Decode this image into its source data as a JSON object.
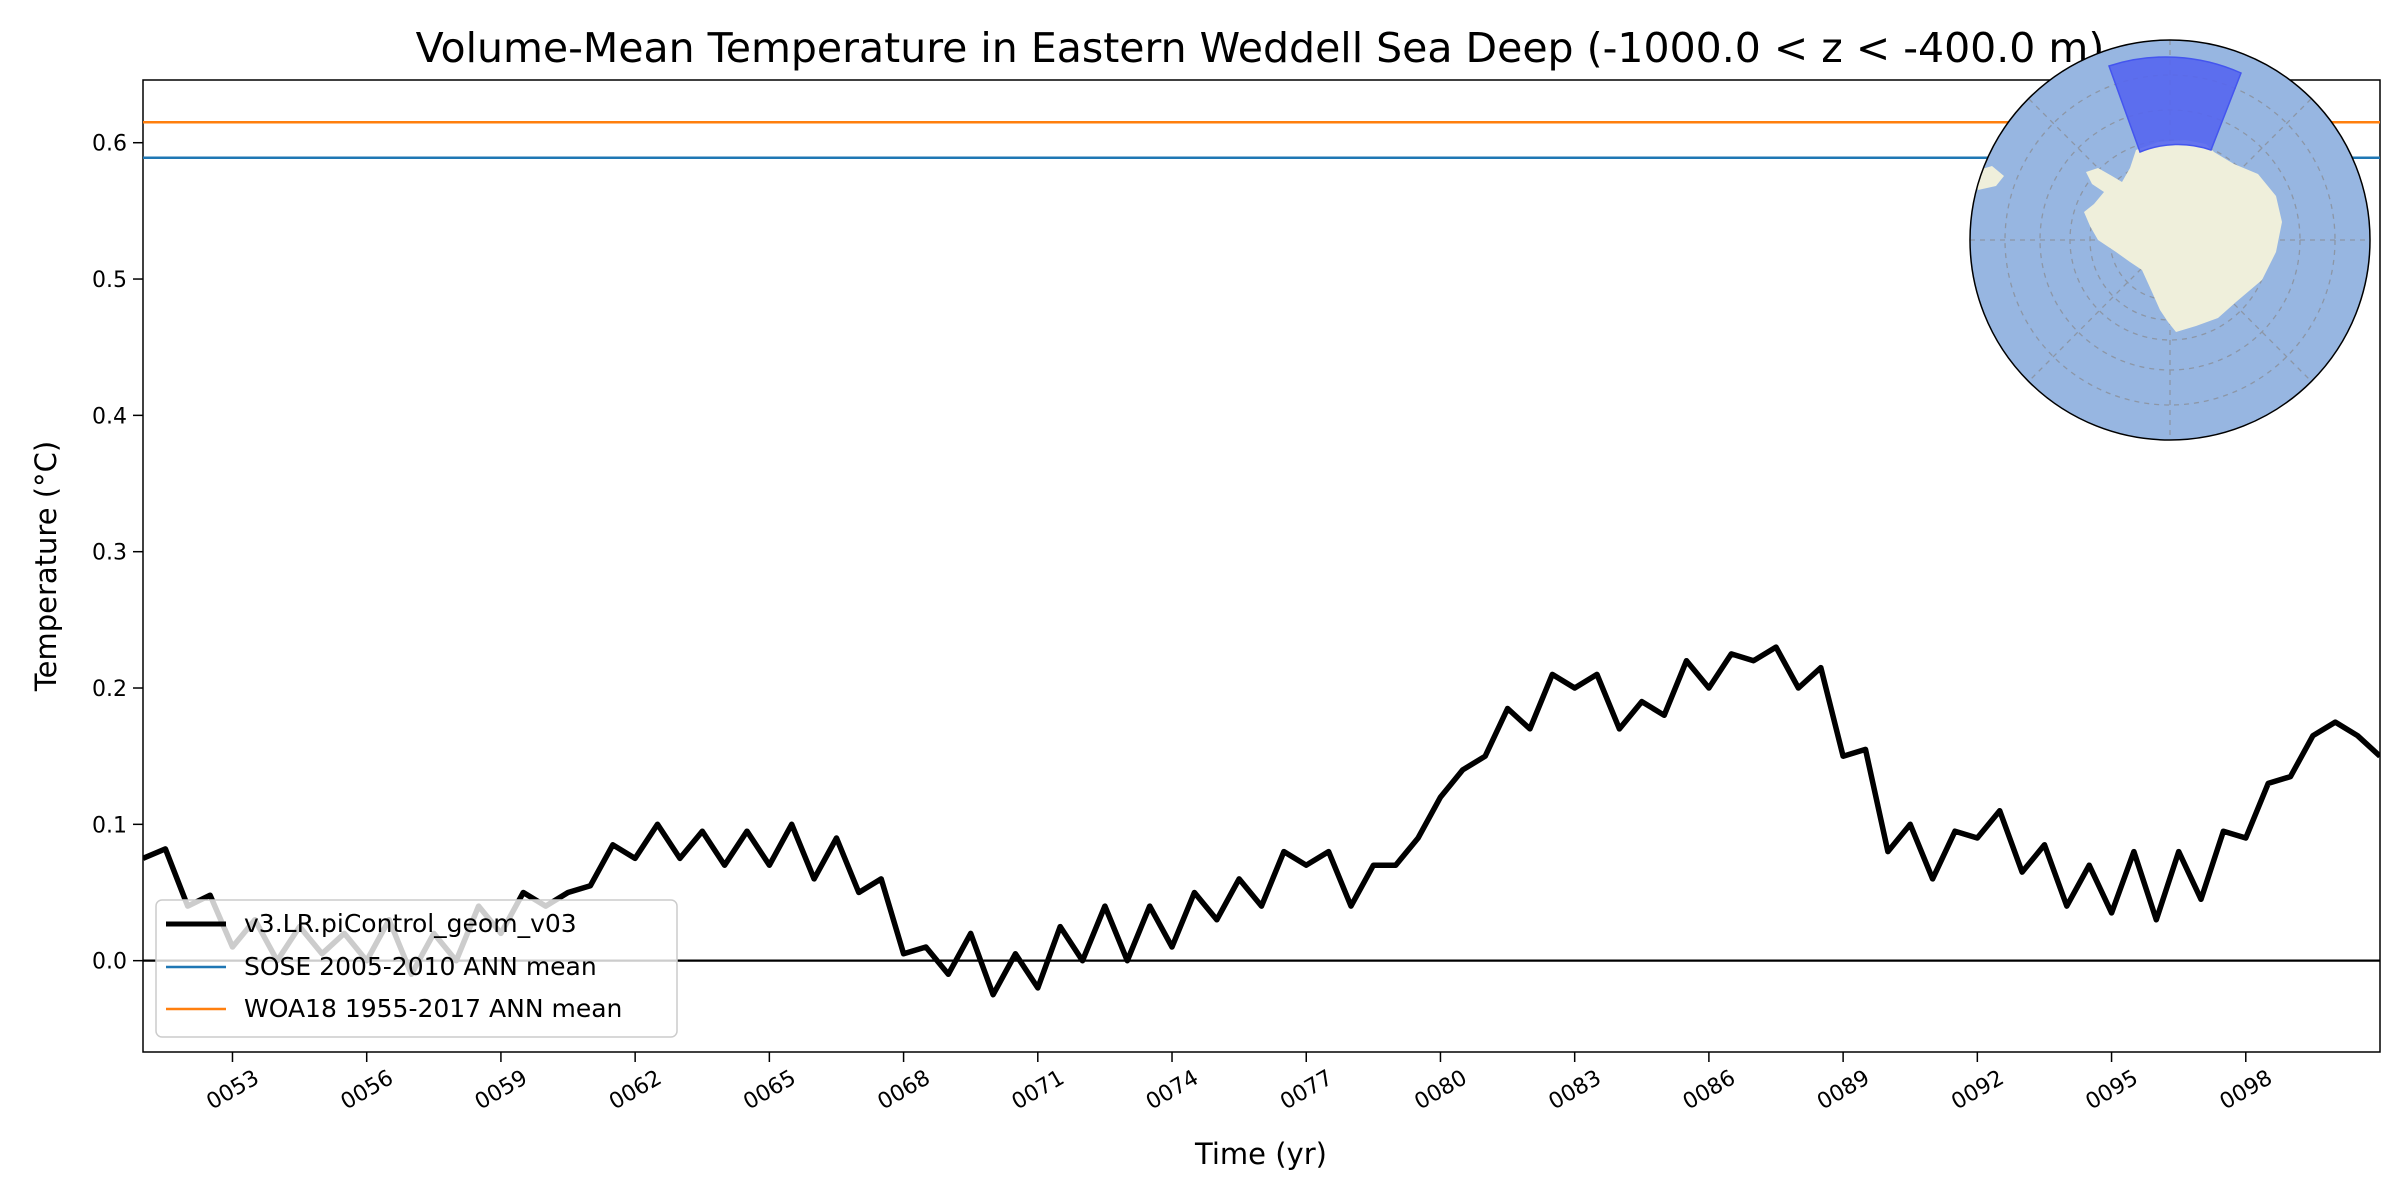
{
  "chart_data": {
    "type": "line",
    "title": "Volume-Mean Temperature in Eastern Weddell Sea Deep (-1000.0 < z < -400.0 m)",
    "xlabel": "Time (yr)",
    "ylabel": "Temperature (°C)",
    "xlim": [
      51,
      101
    ],
    "ylim": [
      -0.067,
      0.646
    ],
    "x_ticks": [
      {
        "value": 53,
        "label": "0053"
      },
      {
        "value": 56,
        "label": "0056"
      },
      {
        "value": 59,
        "label": "0059"
      },
      {
        "value": 62,
        "label": "0062"
      },
      {
        "value": 65,
        "label": "0065"
      },
      {
        "value": 68,
        "label": "0068"
      },
      {
        "value": 71,
        "label": "0071"
      },
      {
        "value": 74,
        "label": "0074"
      },
      {
        "value": 77,
        "label": "0077"
      },
      {
        "value": 80,
        "label": "0080"
      },
      {
        "value": 83,
        "label": "0083"
      },
      {
        "value": 86,
        "label": "0086"
      },
      {
        "value": 89,
        "label": "0089"
      },
      {
        "value": 92,
        "label": "0092"
      },
      {
        "value": 95,
        "label": "0095"
      },
      {
        "value": 98,
        "label": "0098"
      }
    ],
    "y_ticks": [
      {
        "value": 0.0,
        "label": "0.0"
      },
      {
        "value": 0.1,
        "label": "0.1"
      },
      {
        "value": 0.2,
        "label": "0.2"
      },
      {
        "value": 0.3,
        "label": "0.3"
      },
      {
        "value": 0.4,
        "label": "0.4"
      },
      {
        "value": 0.5,
        "label": "0.5"
      },
      {
        "value": 0.6,
        "label": "0.6"
      }
    ],
    "series": [
      {
        "name": "v3.LR.piControl_geom_v03",
        "color": "#000000",
        "x": [
          51.0,
          51.5,
          52.0,
          52.5,
          53.0,
          53.5,
          54.0,
          54.5,
          55.0,
          55.5,
          56.0,
          56.5,
          57.0,
          57.5,
          58.0,
          58.5,
          59.0,
          59.5,
          60.0,
          60.5,
          61.0,
          61.5,
          62.0,
          62.5,
          63.0,
          63.5,
          64.0,
          64.5,
          65.0,
          65.5,
          66.0,
          66.5,
          67.0,
          67.5,
          68.0,
          68.5,
          69.0,
          69.5,
          70.0,
          70.5,
          71.0,
          71.5,
          72.0,
          72.5,
          73.0,
          73.5,
          74.0,
          74.5,
          75.0,
          75.5,
          76.0,
          76.5,
          77.0,
          77.5,
          78.0,
          78.5,
          79.0,
          79.5,
          80.0,
          80.5,
          81.0,
          81.5,
          82.0,
          82.5,
          83.0,
          83.5,
          84.0,
          84.5,
          85.0,
          85.5,
          86.0,
          86.5,
          87.0,
          87.5,
          88.0,
          88.5,
          89.0,
          89.5,
          90.0,
          90.5,
          91.0,
          91.5,
          92.0,
          92.5,
          93.0,
          93.5,
          94.0,
          94.5,
          95.0,
          95.5,
          96.0,
          96.5,
          97.0,
          97.5,
          98.0,
          98.5,
          99.0,
          99.5,
          100.0,
          100.5,
          101.0
        ],
        "y": [
          0.075,
          0.082,
          0.04,
          0.048,
          0.01,
          0.03,
          0.0,
          0.025,
          0.005,
          0.02,
          0.0,
          0.03,
          -0.01,
          0.02,
          0.0,
          0.04,
          0.02,
          0.05,
          0.04,
          0.05,
          0.055,
          0.085,
          0.075,
          0.1,
          0.075,
          0.095,
          0.07,
          0.095,
          0.07,
          0.1,
          0.06,
          0.09,
          0.05,
          0.06,
          0.005,
          0.01,
          -0.01,
          0.02,
          -0.025,
          0.005,
          -0.02,
          0.025,
          0.0,
          0.04,
          0.0,
          0.04,
          0.01,
          0.05,
          0.03,
          0.06,
          0.04,
          0.08,
          0.07,
          0.08,
          0.04,
          0.07,
          0.07,
          0.09,
          0.12,
          0.14,
          0.15,
          0.185,
          0.17,
          0.21,
          0.2,
          0.21,
          0.17,
          0.19,
          0.18,
          0.22,
          0.2,
          0.225,
          0.22,
          0.23,
          0.2,
          0.215,
          0.15,
          0.155,
          0.08,
          0.1,
          0.06,
          0.095,
          0.09,
          0.11,
          0.065,
          0.085,
          0.04,
          0.07,
          0.035,
          0.08,
          0.03,
          0.08,
          0.045,
          0.095,
          0.09,
          0.13,
          0.135,
          0.165,
          0.175,
          0.165,
          0.15
        ]
      },
      {
        "name": "SOSE 2005-2010 ANN mean",
        "color": "#1f77b4",
        "constant": 0.589
      },
      {
        "name": "WOA18 1955-2017 ANN mean",
        "color": "#ff7f0e",
        "constant": 0.615
      }
    ],
    "reference_line": {
      "y": 0.0,
      "color": "#000000"
    },
    "legend": "lower-left",
    "grid": false,
    "inset_map": {
      "type": "south-polar-stereographic",
      "ocean_color": "#97b6e1",
      "land_color": "#efefdb",
      "region_color": "#5566f0"
    }
  }
}
